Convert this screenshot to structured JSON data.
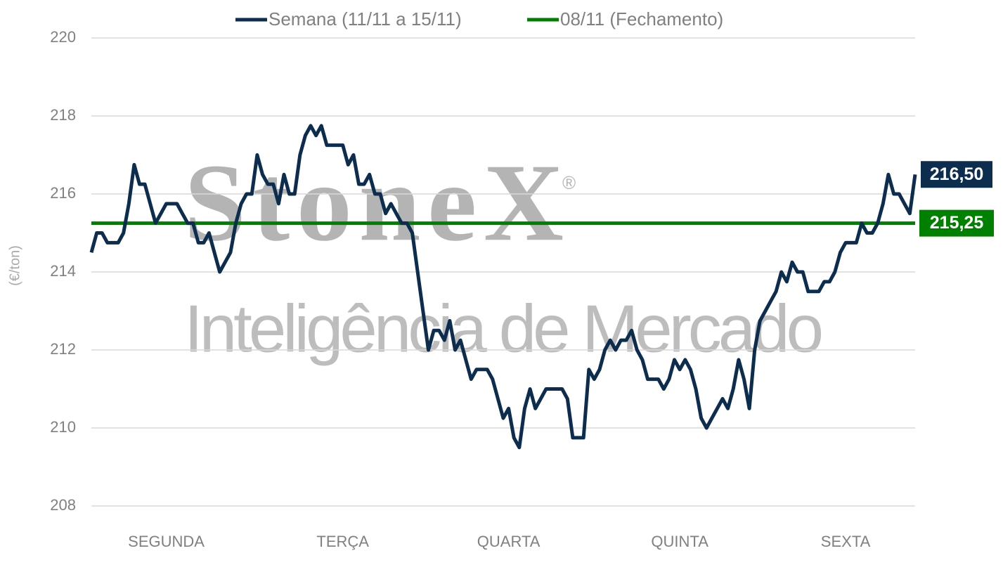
{
  "chart_data": {
    "type": "line",
    "ylabel": "(€/ton)",
    "watermark": {
      "brand": "StoneX",
      "mark": "®",
      "tagline": "Inteligência de Mercado"
    },
    "ylim": [
      208,
      220
    ],
    "yticks": [
      208,
      210,
      212,
      214,
      216,
      218,
      220
    ],
    "grid": true,
    "categories": [
      null,
      null,
      null,
      null,
      null,
      null,
      null,
      null,
      null,
      null,
      null,
      null,
      null,
      null,
      "SEGUNDA",
      null,
      null,
      null,
      null,
      null,
      null,
      null,
      null,
      null,
      null,
      null,
      null,
      null,
      null,
      null,
      null,
      null,
      null,
      null,
      null,
      null,
      null,
      null,
      null,
      null,
      null,
      null,
      null,
      null,
      null,
      null,
      null,
      "TERÇA",
      null,
      null,
      null,
      null,
      null,
      null,
      null,
      null,
      null,
      null,
      null,
      null,
      null,
      null,
      null,
      null,
      null,
      null,
      null,
      null,
      null,
      null,
      null,
      null,
      null,
      null,
      null,
      null,
      null,
      null,
      "QUARTA",
      null,
      null,
      null,
      null,
      null,
      null,
      null,
      null,
      null,
      null,
      null,
      null,
      null,
      null,
      null,
      null,
      null,
      null,
      null,
      null,
      null,
      null,
      null,
      null,
      null,
      null,
      null,
      null,
      null,
      null,
      null,
      "QUINTA",
      null,
      null,
      null,
      null,
      null,
      null,
      null,
      null,
      null,
      null,
      null,
      null,
      null,
      null,
      null,
      null,
      null,
      null,
      null,
      null,
      null,
      null,
      null,
      null,
      null,
      null,
      null,
      null,
      null,
      null,
      "SEXTA",
      null,
      null,
      null,
      null,
      null,
      null,
      null,
      null,
      null,
      null,
      null,
      null,
      null
    ],
    "series": [
      {
        "name": "Semana (11/11 a 15/11)",
        "color": "#0d2d4f",
        "values": [
          214.5,
          215.0,
          215.0,
          214.75,
          214.75,
          214.75,
          215.0,
          215.75,
          216.75,
          216.25,
          216.25,
          215.75,
          215.25,
          215.5,
          215.75,
          215.75,
          215.75,
          215.5,
          215.25,
          215.25,
          214.75,
          214.75,
          215.0,
          214.5,
          214.0,
          214.25,
          214.5,
          215.25,
          215.75,
          216.0,
          216.0,
          217.0,
          216.5,
          216.25,
          216.25,
          215.75,
          216.5,
          216.0,
          216.0,
          217.0,
          217.5,
          217.75,
          217.5,
          217.75,
          217.25,
          217.25,
          217.25,
          217.25,
          216.75,
          217.0,
          216.25,
          216.25,
          216.5,
          216.0,
          216.0,
          215.5,
          215.75,
          215.5,
          215.25,
          215.25,
          215.0,
          214.0,
          213.0,
          212.0,
          212.5,
          212.5,
          212.25,
          212.75,
          212.0,
          212.25,
          211.75,
          211.25,
          211.5,
          211.5,
          211.5,
          211.25,
          210.75,
          210.25,
          210.5,
          209.75,
          209.5,
          210.5,
          211.0,
          210.5,
          210.75,
          211.0,
          211.0,
          211.0,
          211.0,
          210.75,
          209.75,
          209.75,
          209.75,
          211.5,
          211.25,
          211.5,
          212.0,
          212.25,
          212.0,
          212.25,
          212.25,
          212.5,
          212.0,
          211.75,
          211.25,
          211.25,
          211.25,
          211.0,
          211.25,
          211.75,
          211.5,
          211.75,
          211.5,
          211.0,
          210.25,
          210.0,
          210.25,
          210.5,
          210.75,
          210.5,
          211.0,
          211.75,
          211.25,
          210.5,
          212.0,
          212.75,
          213.0,
          213.25,
          213.5,
          214.0,
          213.75,
          214.25,
          214.0,
          214.0,
          213.5,
          213.5,
          213.5,
          213.75,
          213.75,
          214.0,
          214.5,
          214.75,
          214.75,
          214.75,
          215.25,
          215.0,
          215.0,
          215.25,
          215.75,
          216.5,
          216.0,
          216.0,
          215.75,
          215.5,
          216.5
        ],
        "value_labels": [
          null,
          null,
          null,
          null,
          null,
          null,
          null,
          null,
          null,
          null,
          null,
          null,
          null,
          null,
          null,
          null,
          null,
          null,
          null,
          null,
          null,
          null,
          null,
          null,
          null,
          null,
          null,
          null,
          null,
          null,
          null,
          null,
          null,
          null,
          null,
          null,
          null,
          null,
          null,
          null,
          null,
          null,
          null,
          null,
          null,
          null,
          null,
          null,
          null,
          null,
          null,
          null,
          null,
          null,
          null,
          null,
          null,
          null,
          null,
          null,
          null,
          null,
          null,
          null,
          null,
          null,
          null,
          null,
          null,
          null,
          null,
          null,
          null,
          null,
          null,
          null,
          null,
          null,
          null,
          null,
          null,
          null,
          null,
          null,
          null,
          null,
          null,
          null,
          null,
          null,
          null,
          null,
          null,
          null,
          null,
          null,
          null,
          null,
          null,
          null,
          null,
          null,
          null,
          null,
          null,
          null,
          null,
          null,
          null,
          null,
          null,
          null,
          null,
          null,
          null,
          null,
          null,
          null,
          null,
          null,
          null,
          null,
          null,
          null,
          null,
          null,
          null,
          null,
          null,
          null,
          null,
          null,
          null,
          null,
          null,
          null,
          null,
          null,
          null,
          null,
          null,
          null,
          null,
          null,
          null,
          null,
          null,
          null,
          null,
          null,
          null,
          null,
          null,
          null,
          "216,50"
        ]
      }
    ],
    "reference_line": {
      "name": "08/11 (Fechamento)",
      "color": "#008000",
      "value": 215.25,
      "value_label": "215,25"
    }
  }
}
